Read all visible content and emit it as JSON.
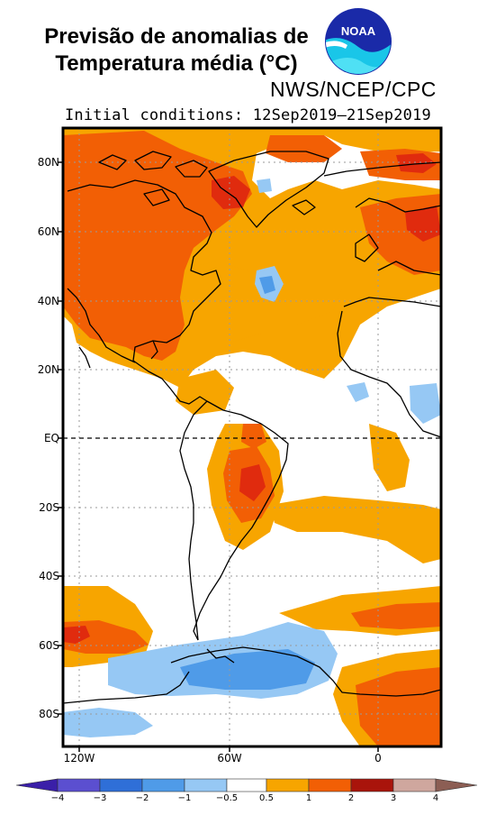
{
  "header": {
    "title_line1": "Previsão de anomalias de",
    "title_line2": "Temperatura média (°C)",
    "logo_text": "NOAA",
    "agency": "NWS/NCEP/CPC",
    "initial_conditions": "Initial conditions: 12Sep2019–21Sep2019"
  },
  "map": {
    "lat_labels": [
      "80N",
      "60N",
      "40N",
      "20N",
      "EQ",
      "20S",
      "40S",
      "60S",
      "80S"
    ],
    "lon_labels": [
      "120W",
      "60W",
      "0"
    ]
  },
  "colorbar": {
    "ticks": [
      "−4",
      "−3",
      "−2",
      "−1",
      "−0.5",
      "0.5",
      "1",
      "2",
      "3",
      "4"
    ],
    "colors": {
      "lt_m4": "#3a1fa8",
      "m4_m3": "#5b4fd0",
      "m3_m2": "#2f6fd8",
      "m2_m1": "#4f9be8",
      "m1_m05": "#96c8f4",
      "m05_05": "#ffffff",
      "p05_1": "#f7a500",
      "p1_2": "#f25f05",
      "p2_3": "#e02b0e",
      "p3_4": "#a9140b",
      "gt_4": "#cfa79e",
      "gt_end": "#8c5e54"
    }
  }
}
